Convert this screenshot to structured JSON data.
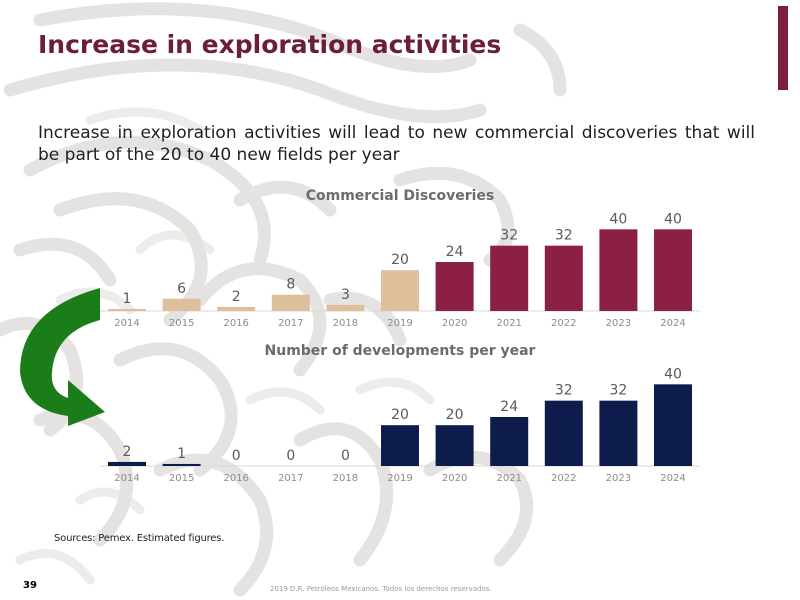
{
  "slide": {
    "title": "Increase in exploration activities",
    "subtitle": "Increase in exploration activities will lead to new commercial discoveries that will be part of the 20 to 40 new fields per year",
    "sources": "Sources: Pemex. Estimated figures.",
    "page_number": "39",
    "footer": "2019 D.R. Petróleos Mexicanos. Todos los derechos reservados.",
    "colors": {
      "title": "#6b1d3a",
      "accent_bar": "#7a1f3d",
      "historical_discoveries": "#ddbf9c",
      "projected_discoveries": "#8c1f45",
      "projected_developments": "#0d1c4a",
      "arrow": "#1a7d1a"
    }
  },
  "chart_data": [
    {
      "type": "bar",
      "title": "Commercial Discoveries",
      "categories": [
        "2014",
        "2015",
        "2016",
        "2017",
        "2018",
        "2019",
        "2020",
        "2021",
        "2022",
        "2023",
        "2024"
      ],
      "values": [
        1,
        6,
        2,
        8,
        3,
        20,
        24,
        32,
        32,
        40,
        40
      ],
      "bar_colors": [
        "#ddbf9c",
        "#ddbf9c",
        "#ddbf9c",
        "#ddbf9c",
        "#ddbf9c",
        "#ddbf9c",
        "#8c1f45",
        "#8c1f45",
        "#8c1f45",
        "#8c1f45",
        "#8c1f45"
      ],
      "data_labels": true,
      "grid": false,
      "legend": "none",
      "ylim": [
        0,
        48
      ]
    },
    {
      "type": "bar",
      "title": "Number of developments per year",
      "categories": [
        "2014",
        "2015",
        "2016",
        "2017",
        "2018",
        "2019",
        "2020",
        "2021",
        "2022",
        "2023",
        "2024"
      ],
      "values": [
        2,
        1,
        0,
        0,
        0,
        20,
        20,
        24,
        32,
        32,
        40
      ],
      "bar_colors": [
        "#0d1c4a",
        "#0d1c4a",
        "#0d1c4a",
        "#0d1c4a",
        "#0d1c4a",
        "#0d1c4a",
        "#0d1c4a",
        "#0d1c4a",
        "#0d1c4a",
        "#0d1c4a",
        "#0d1c4a"
      ],
      "data_labels": true,
      "grid": false,
      "legend": "none",
      "ylim": [
        0,
        48
      ]
    }
  ]
}
